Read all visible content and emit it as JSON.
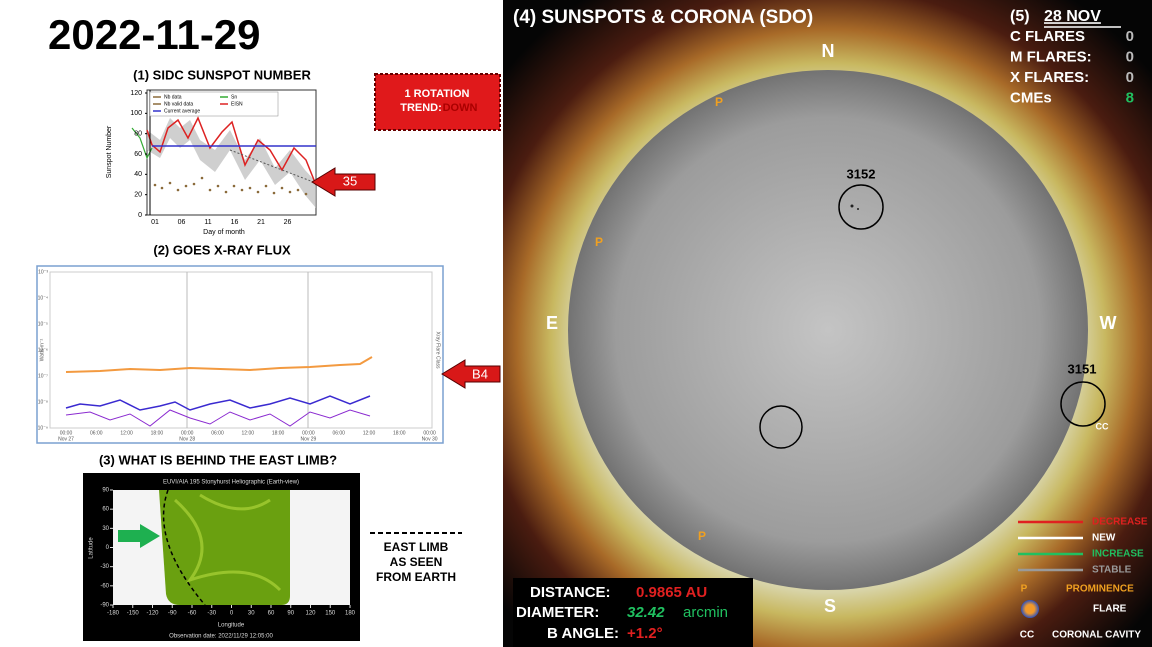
{
  "date": "2022-11-29",
  "panel1": {
    "title": "(1) SIDC SUNSPOT NUMBER",
    "ylabel": "Sunspot Number",
    "xlabel": "Day of month",
    "yticks": [
      0,
      20,
      40,
      60,
      80,
      100,
      120
    ],
    "xticks": [
      "01",
      "06",
      "11",
      "16",
      "21",
      "26"
    ],
    "legend": [
      "Nb data",
      "Nb valid data",
      "Current average",
      "Sn",
      "EISN"
    ],
    "callout": "35"
  },
  "trend": {
    "line1": "1 ROTATION",
    "line2": "TREND:",
    "line3": "DOWN"
  },
  "panel2": {
    "title": "(2) GOES X-RAY FLUX",
    "ylabel": "Watts m⁻²",
    "right_label": "Xray Flare Class",
    "yticks": [
      "10⁻³",
      "10⁻⁴",
      "10⁻⁵",
      "10⁻⁶",
      "10⁻⁷",
      "10⁻⁸",
      "10⁻⁹"
    ],
    "xticks": [
      "00:00",
      "06:00",
      "12:00",
      "18:00",
      "00:00",
      "06:00",
      "12:00",
      "18:00",
      "00:00",
      "06:00",
      "12:00",
      "18:00",
      "00:00"
    ],
    "dates": [
      "Nov 27",
      "Nov 28",
      "Nov 29",
      "Nov 30"
    ],
    "callout": "B4"
  },
  "panel3": {
    "title": "(3) WHAT IS BEHIND THE EAST LIMB?",
    "image_title": "EUVI/AIA 195 Stonyhurst Heliographic (Earth-view)",
    "xlabel": "Longitude",
    "ylabel": "Latitude",
    "xticks": [
      -180,
      -150,
      -120,
      -90,
      -60,
      -30,
      0,
      30,
      60,
      90,
      120,
      150,
      180
    ],
    "yticks": [
      90,
      60,
      30,
      0,
      -30,
      -60,
      -90
    ],
    "footer": "Observation date: 2022/11/29 12:05:00",
    "legend": [
      "EAST LIMB",
      "AS SEEN",
      "FROM EARTH"
    ]
  },
  "panel4": {
    "title": "(4) SUNSPOTS & CORONA (SDO)",
    "north": "N",
    "south": "S",
    "east": "E",
    "west": "W",
    "regions": [
      "3152",
      "3151"
    ],
    "prominence": [
      "P",
      "P",
      "P"
    ],
    "cavity": "CC",
    "distance": {
      "label": "DISTANCE:",
      "value": "0.9865 AU"
    },
    "diameter": {
      "label": "DIAMETER:",
      "value": "32.42",
      "unit": "arcmin"
    },
    "b_angle": {
      "label": "B ANGLE:",
      "value": "+1.2°"
    }
  },
  "panel5": {
    "number": "(5)",
    "date": "28 NOV",
    "rows": [
      {
        "label": "C FLARES",
        "value": 0
      },
      {
        "label": "M FLARES:",
        "value": 0
      },
      {
        "label": "X FLARES:",
        "value": 0
      },
      {
        "label": "CMEs",
        "value": 8
      }
    ]
  },
  "legend": {
    "lines": [
      "DECREASE",
      "NEW",
      "INCREASE",
      "STABLE"
    ],
    "prominence": {
      "symbol": "P",
      "label": "PROMINENCE"
    },
    "flare": "FLARE",
    "cavity": {
      "symbol": "CC",
      "label": "CORONAL CAVITY"
    }
  }
}
